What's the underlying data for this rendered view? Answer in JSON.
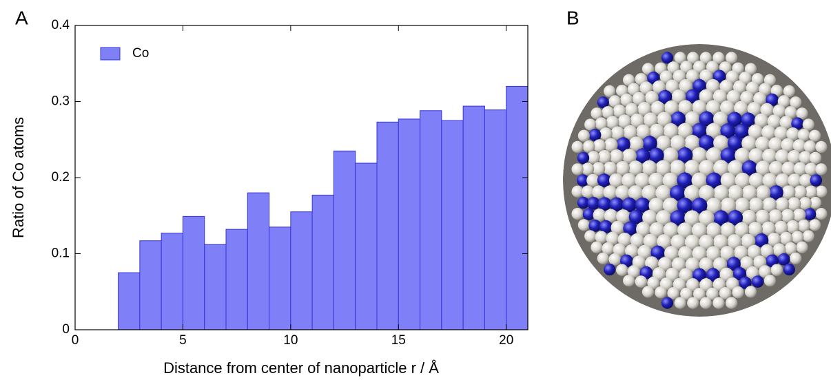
{
  "panel_labels": [
    "A",
    "B"
  ],
  "chart_data": {
    "type": "histogram",
    "xlabel": "Distance from center of nanoparticle r / Å",
    "ylabel": "Ratio of Co atoms",
    "bins": [
      0,
      1,
      2,
      3,
      4,
      5,
      6,
      7,
      8,
      9,
      10,
      11,
      12,
      13,
      14,
      15,
      16,
      17,
      18,
      19,
      20,
      21
    ],
    "series": [
      {
        "name": "Co",
        "color": "#7f7ff7",
        "edgecolor": "#3333dd",
        "values": [
          0,
          0,
          0.075,
          0.117,
          0.127,
          0.149,
          0.112,
          0.132,
          0.18,
          0.135,
          0.155,
          0.177,
          0.235,
          0.219,
          0.273,
          0.277,
          0.288,
          0.275,
          0.294,
          0.289,
          0.32
        ]
      }
    ],
    "xlim": [
      0,
      21
    ],
    "xticks": [
      0,
      5,
      10,
      15,
      20
    ],
    "ylim": [
      0,
      0.4
    ],
    "yticks": [
      0,
      0.1,
      0.2,
      0.3,
      0.4
    ],
    "legend": "upper left"
  }
}
